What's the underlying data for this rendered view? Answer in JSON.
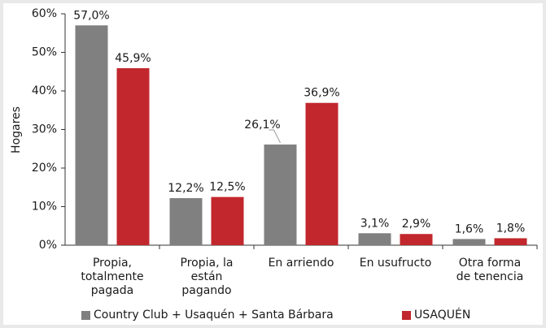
{
  "chart_data": {
    "type": "bar",
    "y_label": "Hogares",
    "categories": [
      "Propia, totalmente pagada",
      "Propia, la están pagando",
      "En arriendo",
      "En usufructo",
      "Otra forma de tenencia"
    ],
    "series": [
      {
        "name": "Country Club + Usaquén + Santa Bárbara",
        "color": "#808080",
        "values": [
          57.0,
          12.2,
          26.1,
          3.1,
          1.6
        ],
        "value_labels": [
          "57,0%",
          "12,2%",
          "26,1%",
          "3,1%",
          "1,6%"
        ]
      },
      {
        "name": "USAQUÉN",
        "color": "#c1272d",
        "values": [
          45.9,
          12.5,
          36.9,
          2.9,
          1.8
        ],
        "value_labels": [
          "45,9%",
          "12,5%",
          "36,9%",
          "2,9%",
          "1,8%"
        ]
      }
    ],
    "ylim": [
      0,
      60
    ],
    "yticks": [
      {
        "value": 0,
        "label": "0%"
      },
      {
        "value": 10,
        "label": "10%"
      },
      {
        "value": 20,
        "label": "20%"
      },
      {
        "value": 30,
        "label": "30%"
      },
      {
        "value": 40,
        "label": "40%"
      },
      {
        "value": 50,
        "label": "50%"
      },
      {
        "value": 60,
        "label": "60%"
      }
    ],
    "grid": false
  }
}
